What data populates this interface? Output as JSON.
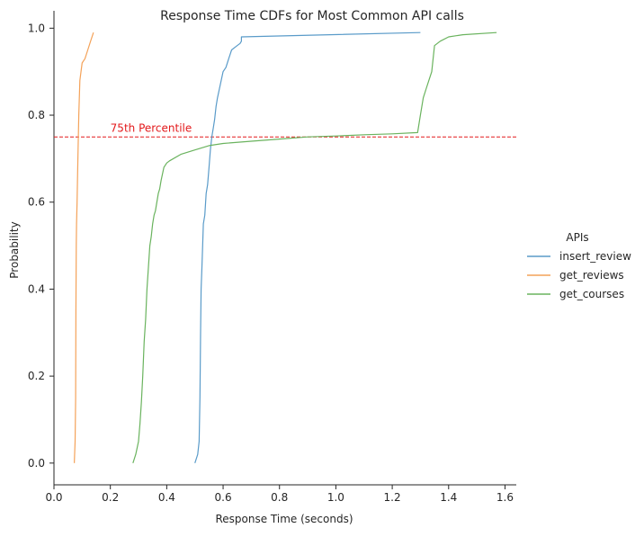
{
  "chart_data": {
    "type": "line",
    "title": "Response Time CDFs for Most Common API calls",
    "xlabel": "Response Time (seconds)",
    "ylabel": "Probability",
    "xlim": [
      0.0,
      1.64
    ],
    "ylim": [
      -0.05,
      1.04
    ],
    "xticks": [
      0.0,
      0.2,
      0.4,
      0.6,
      0.8,
      1.0,
      1.2,
      1.4,
      1.6
    ],
    "xtick_labels": [
      "0.0",
      "0.2",
      "0.4",
      "0.6",
      "0.8",
      "1.0",
      "1.2",
      "1.4",
      "1.6"
    ],
    "yticks": [
      0.0,
      0.2,
      0.4,
      0.6,
      0.8,
      1.0
    ],
    "ytick_labels": [
      "0.0",
      "0.2",
      "0.4",
      "0.6",
      "0.8",
      "1.0"
    ],
    "grid": false,
    "legend": {
      "title": "APIs",
      "placement": "right"
    },
    "reference_line": {
      "y": 0.75,
      "color": "#e31a1c",
      "style": "dashed"
    },
    "annotation": {
      "text": "75th Percentile",
      "x": 0.2,
      "y": 0.77,
      "color": "#e31a1c"
    },
    "series": [
      {
        "name": "insert_review",
        "color": "#5a9bc9",
        "x": [
          0.5,
          0.51,
          0.515,
          0.518,
          0.52,
          0.522,
          0.525,
          0.53,
          0.535,
          0.54,
          0.545,
          0.55,
          0.555,
          0.56,
          0.565,
          0.57,
          0.575,
          0.58,
          0.59,
          0.6,
          0.61,
          0.62,
          0.63,
          0.65,
          0.66,
          0.665,
          0.665,
          1.3
        ],
        "y": [
          0.0,
          0.02,
          0.05,
          0.15,
          0.3,
          0.4,
          0.45,
          0.55,
          0.57,
          0.62,
          0.64,
          0.68,
          0.72,
          0.75,
          0.77,
          0.79,
          0.82,
          0.84,
          0.87,
          0.9,
          0.91,
          0.93,
          0.95,
          0.96,
          0.965,
          0.97,
          0.98,
          0.99
        ]
      },
      {
        "name": "get_reviews",
        "color": "#f4a259",
        "x": [
          0.072,
          0.075,
          0.077,
          0.078,
          0.079,
          0.08,
          0.082,
          0.085,
          0.088,
          0.092,
          0.1,
          0.11,
          0.12,
          0.13,
          0.14
        ],
        "y": [
          0.0,
          0.05,
          0.15,
          0.35,
          0.5,
          0.55,
          0.6,
          0.7,
          0.8,
          0.88,
          0.92,
          0.93,
          0.95,
          0.97,
          0.99
        ]
      },
      {
        "name": "get_courses",
        "color": "#6ab35e",
        "x": [
          0.28,
          0.29,
          0.3,
          0.305,
          0.31,
          0.315,
          0.32,
          0.325,
          0.33,
          0.335,
          0.34,
          0.345,
          0.35,
          0.355,
          0.36,
          0.37,
          0.375,
          0.38,
          0.39,
          0.4,
          0.41,
          0.45,
          0.5,
          0.55,
          0.6,
          0.7,
          0.8,
          0.9,
          1.0,
          1.1,
          1.2,
          1.29,
          1.3,
          1.31,
          1.32,
          1.33,
          1.34,
          1.35,
          1.37,
          1.4,
          1.45,
          1.57
        ],
        "y": [
          0.0,
          0.02,
          0.05,
          0.09,
          0.14,
          0.2,
          0.28,
          0.33,
          0.4,
          0.45,
          0.5,
          0.52,
          0.55,
          0.57,
          0.58,
          0.62,
          0.63,
          0.65,
          0.68,
          0.69,
          0.695,
          0.71,
          0.72,
          0.73,
          0.735,
          0.74,
          0.745,
          0.75,
          0.752,
          0.755,
          0.757,
          0.76,
          0.8,
          0.84,
          0.86,
          0.88,
          0.9,
          0.96,
          0.97,
          0.98,
          0.985,
          0.99
        ]
      }
    ]
  }
}
